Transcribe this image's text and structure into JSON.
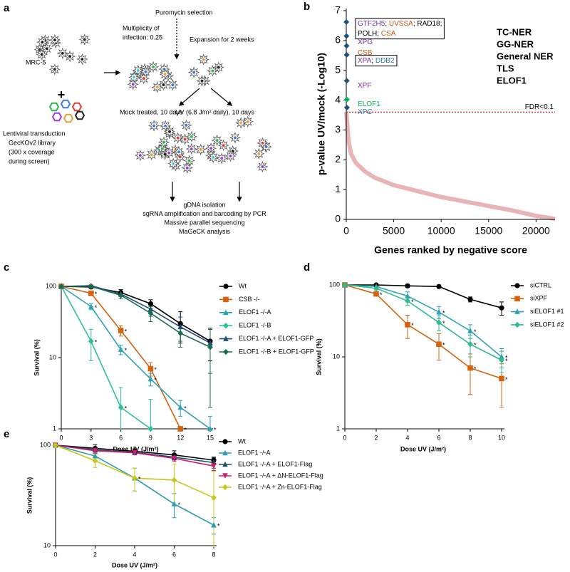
{
  "diagram": {
    "label": "a",
    "cell_line": "MRC-5",
    "plus": "+",
    "transduction": [
      "Lentiviral transduction",
      "GecKOv2 library",
      "(300 x coverage",
      "during screen)"
    ],
    "puromycin": "Puromycin selection",
    "moi": [
      "Multiplicity of",
      "infection: 0.25"
    ],
    "expansion": "Expansion for 2 weeks",
    "mock": "Mock treated, 10 days",
    "uv": "UV (6.8 J/m² daily), 10 days",
    "steps": [
      "gDNA isolation",
      "sgRNA amplification and barcoding by PCR",
      "Massive parallel sequencing",
      "MaGeCK analysis"
    ]
  },
  "chart_data": [
    {
      "type": "rank",
      "label": "b",
      "x_label": "Genes ranked by negative score",
      "y_label": "p-value UV/mock (-Log10)",
      "xlim": [
        0,
        22000
      ],
      "xticks": [
        0,
        5000,
        10000,
        15000,
        20000
      ],
      "ylim": [
        0,
        7
      ],
      "yticks": [
        0,
        1,
        2,
        3,
        4,
        5,
        6,
        7
      ],
      "series": [
        {
          "color": "#e8b4b4",
          "x": [
            0,
            250,
            500,
            1000,
            2000,
            3000,
            5000,
            7500,
            10000,
            12500,
            15000,
            17500,
            20000,
            22000
          ],
          "values": [
            3.6,
            2.6,
            2.2,
            1.9,
            1.6,
            1.4,
            1.15,
            0.95,
            0.75,
            0.6,
            0.45,
            0.3,
            0.12,
            0.02
          ]
        }
      ],
      "points": {
        "x": [
          10,
          20,
          30,
          40,
          50,
          60,
          70
        ],
        "values": [
          6.62,
          6.15,
          5.82,
          5.52,
          4.65,
          4.02,
          3.75
        ],
        "colors": [
          "#1f4e79",
          "#1f4e79",
          "#1f4e79",
          "#1f4e79",
          "#1f4e79",
          "#00b050",
          "#1f4e79"
        ]
      },
      "gene_labels": [
        {
          "boxed": true,
          "lines": [
            [
              {
                "text": "GTF2H5",
                "color": "#7030a0"
              },
              {
                "text": "; ",
                "color": "#000000"
              },
              {
                "text": "UVSSA",
                "color": "#c55a11"
              },
              {
                "text": "; RAD18;",
                "color": "#000000"
              }
            ],
            [
              {
                "text": "POLH",
                "color": "#000000"
              },
              {
                "text": "; ",
                "color": "#000000"
              },
              {
                "text": "CSA",
                "color": "#c55a11"
              }
            ]
          ]
        },
        {
          "boxed": false,
          "lines": [
            [
              {
                "text": "XPG",
                "color": "#7030a0"
              }
            ]
          ]
        },
        {
          "boxed": false,
          "lines": [
            [
              {
                "text": "CSB",
                "color": "#c55a11"
              }
            ]
          ]
        },
        {
          "boxed": true,
          "lines": [
            [
              {
                "text": "XPA",
                "color": "#7030a0"
              },
              {
                "text": "; ",
                "color": "#000000"
              },
              {
                "text": "DDB2",
                "color": "#2e75b6"
              }
            ]
          ]
        },
        {
          "boxed": false,
          "lines": [
            [
              {
                "text": "XPF",
                "color": "#7030a0"
              }
            ]
          ]
        },
        {
          "boxed": false,
          "lines": [
            [
              {
                "text": "ELOF1",
                "color": "#00b050"
              }
            ]
          ]
        },
        {
          "boxed": false,
          "lines": [
            [
              {
                "text": "XPC",
                "color": "#2e75b6"
              }
            ]
          ]
        }
      ],
      "threshold": {
        "value": 3.6,
        "label": "FDR<0.1",
        "color": "#c00000"
      },
      "legend": [
        {
          "name": "TC-NER",
          "color": "#c55a11"
        },
        {
          "name": "GG-NER",
          "color": "#2e75b6"
        },
        {
          "name": "General NER",
          "color": "#7030a0"
        },
        {
          "name": "TLS",
          "color": "#000000"
        },
        {
          "name": "ELOF1",
          "color": "#00b050"
        }
      ]
    },
    {
      "type": "line",
      "label": "c",
      "x_label": "Dose UV (J/m²)",
      "y_label": "Survival (%)",
      "yscale": "log",
      "xlim": [
        0,
        15
      ],
      "xticks": [
        0,
        3,
        6,
        9,
        12,
        15
      ],
      "ylim": [
        1,
        100
      ],
      "yticks": [
        1,
        10,
        100
      ],
      "significance_mark": "*",
      "x": [
        0,
        3,
        6,
        9,
        12,
        15
      ],
      "series": [
        {
          "name": "Wt",
          "color": "#000000",
          "marker": "circle",
          "values": [
            100,
            98,
            82,
            57,
            30,
            17
          ],
          "errors": [
            null,
            3,
            8,
            8,
            14,
            8
          ]
        },
        {
          "name": "CSB -/-",
          "color": "#d4620e",
          "marker": "square",
          "values": [
            100,
            80,
            24,
            7,
            1,
            null
          ],
          "errors": [
            null,
            6,
            4,
            1.5,
            null,
            null
          ],
          "significant": [
            false,
            true,
            true,
            true,
            true,
            false
          ]
        },
        {
          "name": "ELOF1 -/-A",
          "color": "#2aa3b8",
          "marker": "triangle",
          "values": [
            100,
            52,
            13,
            5,
            2,
            1
          ],
          "errors": [
            null,
            5,
            2,
            1,
            0.5,
            0.5
          ],
          "significant": [
            false,
            true,
            true,
            true,
            true,
            true
          ]
        },
        {
          "name": "ELOF1 -/-B",
          "color": "#2bbf9a",
          "marker": "diamond",
          "values": [
            100,
            17,
            2,
            1,
            null,
            null
          ],
          "errors": [
            null,
            8,
            1.8,
            1.6,
            null,
            null
          ],
          "significant": [
            false,
            true,
            true,
            false,
            false,
            false
          ]
        },
        {
          "name": "ELOF1 -/-A + ELOF1-GFP",
          "color": "#1f4e6e",
          "marker": "triangle",
          "values": [
            100,
            102,
            78,
            48,
            27,
            16
          ],
          "errors": [
            null,
            3,
            6,
            10,
            10,
            10
          ]
        },
        {
          "name": "ELOF1 -/-B + ELOF1-GFP",
          "color": "#1a6e50",
          "marker": "diamond",
          "values": [
            100,
            100,
            75,
            42,
            22,
            14
          ],
          "errors": [
            null,
            3,
            8,
            10,
            8,
            12
          ]
        }
      ]
    },
    {
      "type": "line",
      "label": "d",
      "x_label": "Dose UV (J/m²)",
      "y_label": "Survival (%)",
      "yscale": "log",
      "xlim": [
        0,
        10
      ],
      "xticks": [
        0,
        2,
        4,
        6,
        8,
        10
      ],
      "ylim": [
        1,
        100
      ],
      "yticks": [
        1,
        10,
        100
      ],
      "significance_mark": "*",
      "x": [
        0,
        2,
        4,
        6,
        8,
        10
      ],
      "series": [
        {
          "name": "siCTRL",
          "color": "#000000",
          "marker": "circle",
          "values": [
            100,
            100,
            97,
            95,
            63,
            48
          ],
          "errors": [
            null,
            null,
            5,
            5,
            5,
            10
          ]
        },
        {
          "name": "siXPF",
          "color": "#d4620e",
          "marker": "square",
          "values": [
            100,
            75,
            28,
            15,
            7,
            5
          ],
          "errors": [
            null,
            5,
            10,
            6,
            4,
            3
          ],
          "significant": [
            false,
            true,
            true,
            true,
            true,
            true
          ]
        },
        {
          "name": "siELOF1 #1",
          "color": "#2aa3b8",
          "marker": "triangle",
          "values": [
            100,
            95,
            70,
            42,
            23,
            10
          ],
          "errors": [
            null,
            5,
            10,
            8,
            5,
            3
          ],
          "significant": [
            false,
            false,
            false,
            true,
            true,
            true
          ]
        },
        {
          "name": "siELOF1 #2",
          "color": "#2dbb8a",
          "marker": "diamond",
          "values": [
            100,
            90,
            60,
            30,
            15,
            9
          ],
          "errors": [
            null,
            5,
            8,
            7,
            5,
            3
          ],
          "significant": [
            false,
            false,
            true,
            true,
            true,
            true
          ]
        }
      ]
    },
    {
      "type": "line",
      "label": "e",
      "x_label": "Dose UV (J/m²)",
      "y_label": "Survival (%)",
      "yscale": "log",
      "xlim": [
        0,
        8
      ],
      "xticks": [
        0,
        2,
        4,
        6,
        8
      ],
      "ylim": [
        10,
        100
      ],
      "yticks": [
        10,
        100
      ],
      "significance_mark": "*",
      "x": [
        0,
        2,
        4,
        6,
        8
      ],
      "series": [
        {
          "name": "Wt",
          "color": "#000000",
          "marker": "circle",
          "values": [
            100,
            93,
            87,
            80,
            71
          ],
          "errors": [
            null,
            8,
            5,
            8,
            5
          ]
        },
        {
          "name": "ELOF1 -/-A",
          "color": "#2a9bb0",
          "marker": "triangle",
          "values": [
            100,
            78,
            47,
            26,
            16
          ],
          "errors": [
            null,
            8,
            12,
            7,
            3
          ],
          "significant": [
            false,
            false,
            true,
            true,
            true
          ]
        },
        {
          "name": "ELOF1 -/-A + ELOF1-Flag",
          "color": "#1d4f6b",
          "marker": "triangle",
          "values": [
            100,
            90,
            85,
            76,
            67
          ],
          "errors": [
            null,
            5,
            4,
            5,
            8
          ]
        },
        {
          "name": "ELOF1 -/-A + ΔN-ELOF1-Flag",
          "color": "#d1196b",
          "marker": "triangle-down",
          "values": [
            100,
            88,
            84,
            74,
            62
          ],
          "errors": [
            null,
            5,
            4,
            5,
            6
          ]
        },
        {
          "name": "ELOF1 -/-A + Zn-ELOF1-Flag",
          "color": "#c7c81a",
          "marker": "diamond",
          "values": [
            100,
            70,
            47,
            45,
            30
          ],
          "errors": [
            null,
            10,
            12,
            20,
            25
          ]
        }
      ]
    }
  ]
}
